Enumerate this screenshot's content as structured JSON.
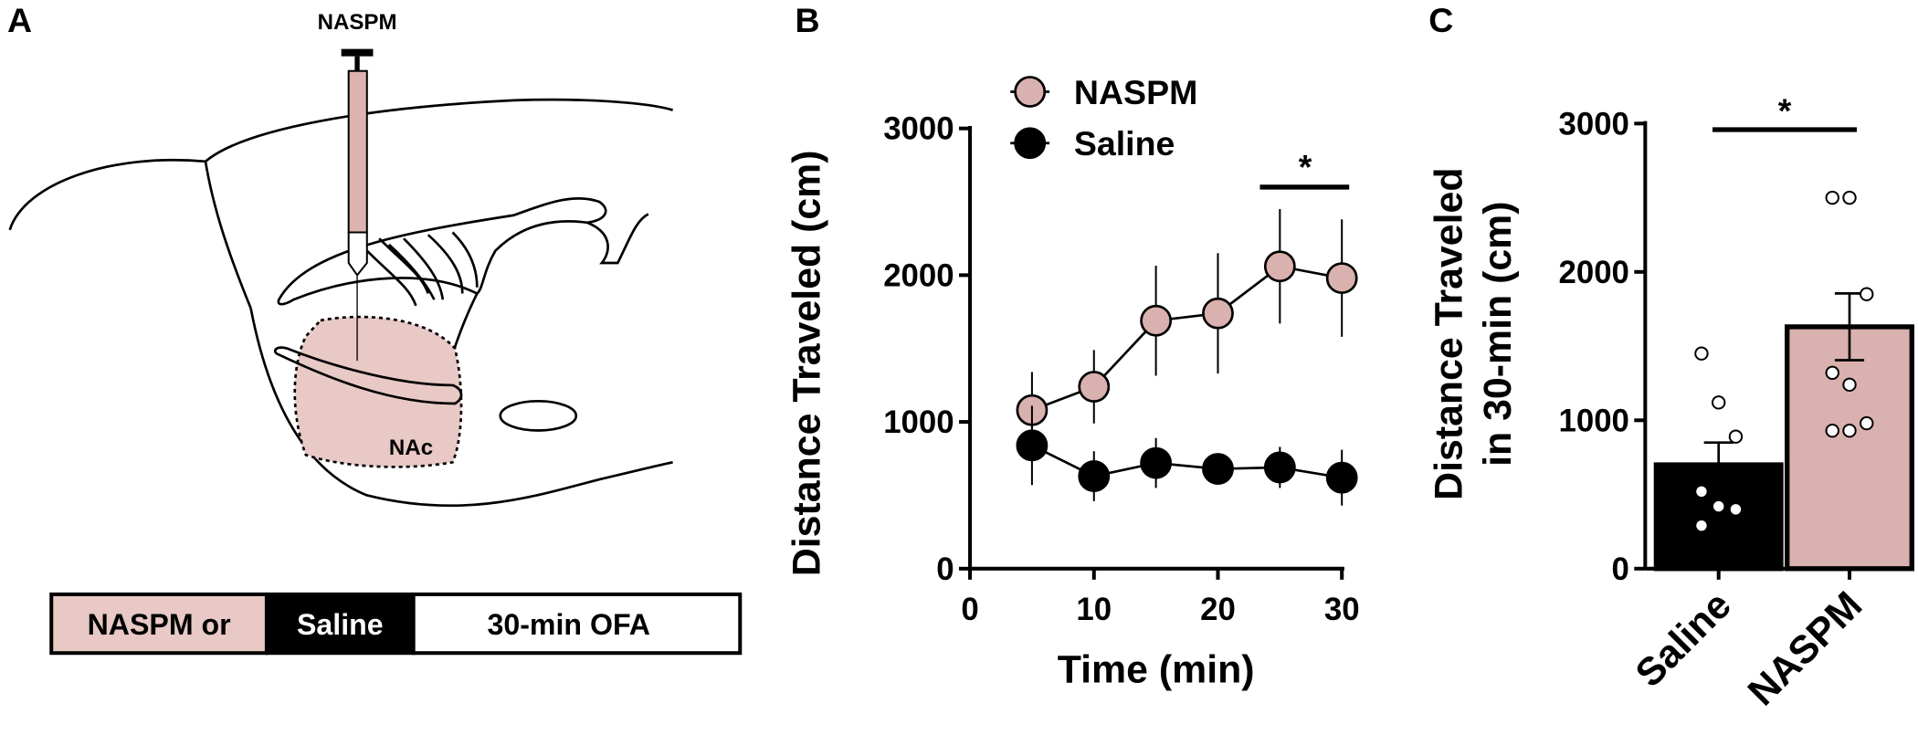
{
  "panel_a": {
    "label": "A",
    "syringe_label": "NASPM",
    "region_label": "NAc",
    "timeline": [
      "NASPM or",
      "Saline",
      "30-min OFA"
    ]
  },
  "chart_data": [
    {
      "type": "line",
      "panel_label": "B",
      "x_label": "Time (min)",
      "y_label": "Distance Traveled (cm)",
      "x": [
        5,
        10,
        15,
        20,
        25,
        30
      ],
      "series": [
        {
          "name": "NASPM",
          "color": "#d9b1ae",
          "values": [
            1080,
            1240,
            1690,
            1740,
            2060,
            1980
          ],
          "errors": [
            260,
            250,
            375,
            410,
            390,
            400
          ]
        },
        {
          "name": "Saline",
          "color": "#000000",
          "values": [
            840,
            630,
            720,
            680,
            690,
            620
          ],
          "errors": [
            270,
            170,
            170,
            80,
            140,
            190
          ]
        }
      ],
      "xlim": [
        0,
        30
      ],
      "xticks": [
        0,
        10,
        20,
        30
      ],
      "ylim": [
        0,
        3000
      ],
      "yticks": [
        0,
        1000,
        2000,
        3000
      ],
      "annotations": [
        "*"
      ]
    },
    {
      "type": "bar",
      "panel_label": "C",
      "y_label": [
        "Distance Traveled",
        "in 30-min (cm)"
      ],
      "categories": [
        "Saline",
        "NASPM"
      ],
      "values": [
        700,
        1630
      ],
      "errors": [
        150,
        225
      ],
      "colors": [
        "#000000",
        "#d9b1ae"
      ],
      "points": [
        [
          1450,
          1120,
          890,
          520,
          420,
          400,
          290
        ],
        [
          2500,
          2500,
          1850,
          1320,
          1240,
          980,
          930,
          930
        ]
      ],
      "ylim": [
        0,
        3000
      ],
      "yticks": [
        0,
        1000,
        2000,
        3000
      ],
      "annotations": [
        "*"
      ]
    }
  ]
}
